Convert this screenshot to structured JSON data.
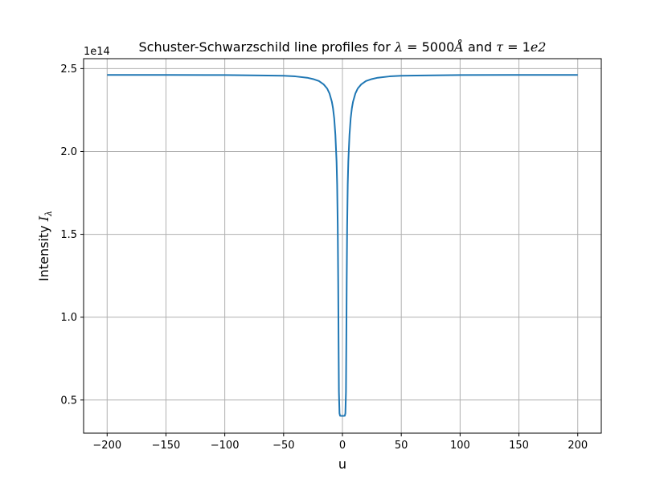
{
  "chart_data": {
    "type": "line",
    "title": {
      "prefix": "Schuster-Schwarzschild line profiles for ",
      "lambda_sym": "λ",
      "lambda_value": " = 5000",
      "angstrom": "Å",
      "conj": " and ",
      "tau_sym": "τ",
      "tau_value": " = 1",
      "tau_exp": "e2"
    },
    "xlabel": "u",
    "ylabel": {
      "prefix": "Intensity  ",
      "symbol": "I",
      "subscript": "λ"
    },
    "y_offset_label": "1e14",
    "xlim": [
      -220,
      220
    ],
    "ylim": [
      0.3,
      2.56
    ],
    "y_scale_note": "values in units of 1e14",
    "grid": true,
    "x_ticks": [
      -200,
      -150,
      -100,
      -50,
      0,
      50,
      100,
      150,
      200
    ],
    "x_tick_labels": [
      "−200",
      "−150",
      "−100",
      "−50",
      "0",
      "50",
      "100",
      "150",
      "200"
    ],
    "y_ticks": [
      0.5,
      1.0,
      1.5,
      2.0,
      2.5
    ],
    "y_tick_labels": [
      "0.5",
      "1.0",
      "1.5",
      "2.0",
      "2.5"
    ],
    "series": [
      {
        "color": "#1f77b4",
        "x": [
          -200,
          -150,
          -100,
          -70,
          -50,
          -40,
          -30,
          -25,
          -20,
          -16,
          -13,
          -11,
          -9,
          -8,
          -7,
          -6,
          -5,
          -4.5,
          -4,
          -3.6,
          -3.3,
          -3,
          -2.5,
          -2,
          -1,
          0,
          1,
          2,
          2.5,
          3,
          3.3,
          3.6,
          4,
          4.5,
          5,
          6,
          7,
          8,
          9,
          11,
          13,
          16,
          20,
          25,
          30,
          40,
          50,
          70,
          100,
          150,
          200
        ],
        "y": [
          2.462,
          2.462,
          2.461,
          2.459,
          2.457,
          2.453,
          2.445,
          2.437,
          2.425,
          2.405,
          2.38,
          2.35,
          2.3,
          2.26,
          2.2,
          2.1,
          1.94,
          1.8,
          1.55,
          1.2,
          0.85,
          0.55,
          0.42,
          0.405,
          0.404,
          0.404,
          0.404,
          0.405,
          0.42,
          0.55,
          0.85,
          1.2,
          1.55,
          1.8,
          1.94,
          2.1,
          2.2,
          2.26,
          2.3,
          2.35,
          2.38,
          2.405,
          2.425,
          2.437,
          2.445,
          2.453,
          2.457,
          2.459,
          2.461,
          2.462,
          2.462
        ]
      }
    ]
  }
}
